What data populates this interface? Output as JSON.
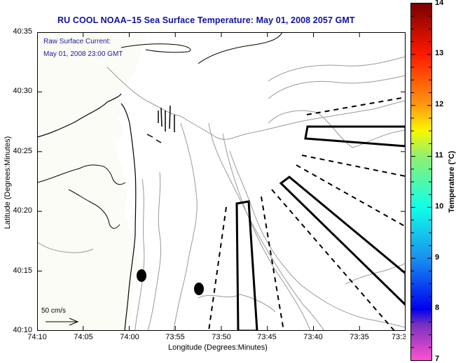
{
  "title": "RU COOL  NOAA–15  Sea Surface Temperature:  May 01, 2008 2057 GMT",
  "annotation": {
    "line1": "Raw Surface Current:",
    "line2": "May 01, 2008 23:00 GMT"
  },
  "axes": {
    "xlabel": "Longitude (Degrees:Minutes)",
    "ylabel": "Latitude (Degrees:Minutes)",
    "xticks": [
      "74:10",
      "74:05",
      "74:00",
      "73:55",
      "73:50",
      "73:45",
      "73:40",
      "73:35",
      "73:3"
    ],
    "yticks": [
      "40:35",
      "40:30",
      "40:25",
      "40:20",
      "40:15",
      "40:10"
    ]
  },
  "scale_vector": {
    "label": "50 cm/s"
  },
  "colorbar": {
    "label": "Temperature (°C)",
    "ticks": [
      "14",
      "13",
      "12",
      "11",
      "10",
      "9",
      "8",
      "7"
    ],
    "min": 7,
    "max": 14,
    "colors": {
      "14": "#7a0000",
      "13": "#ff1a00",
      "12": "#ff9a10",
      "11.5": "#f8f800",
      "11": "#90f070",
      "10": "#10ffe8",
      "9": "#1890f0",
      "8": "#0000f0",
      "7.7": "#7830c0",
      "7": "#ff50d0"
    }
  },
  "chart_data": {
    "type": "map",
    "title": "RU COOL  NOAA–15  Sea Surface Temperature:  May 01, 2008 2057 GMT",
    "xlabel": "Longitude (Degrees:Minutes)",
    "ylabel": "Latitude (Degrees:Minutes)",
    "xlim_minutes_west": [
      74.1667,
      73.5
    ],
    "ylim_minutes_north": [
      40.1667,
      40.5833
    ],
    "xticks": [
      "74:10",
      "74:05",
      "74:00",
      "73:55",
      "73:50",
      "73:45",
      "73:40",
      "73:35",
      "73:3"
    ],
    "yticks": [
      "40:35",
      "40:30",
      "40:25",
      "40:20",
      "40:15",
      "40:10"
    ],
    "colorbar_range": [
      7,
      14
    ],
    "colorbar_label": "Temperature (°C)",
    "features": {
      "solid_boxes": 3,
      "dashed_lines": 7,
      "black_dots": [
        {
          "lon": "73:58.9",
          "lat": "40:14.6"
        },
        {
          "lon": "73:52.6",
          "lat": "40:13.5"
        }
      ],
      "current_vectors_region": {
        "lon": "73:56",
        "lat": "40:26"
      }
    }
  }
}
